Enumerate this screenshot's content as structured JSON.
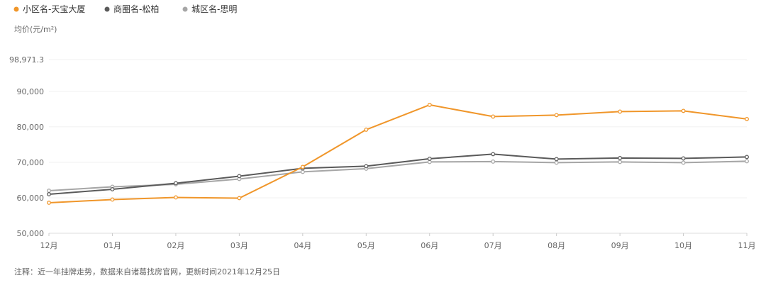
{
  "chart_data": {
    "type": "line",
    "ylabel": "均价(元/m²)",
    "ymax_label": "98,971.3",
    "ylim": [
      50000,
      98971.3
    ],
    "yticks": [
      {
        "value": 50000,
        "label": "50,000"
      },
      {
        "value": 60000,
        "label": "60,000"
      },
      {
        "value": 70000,
        "label": "70,000"
      },
      {
        "value": 80000,
        "label": "80,000"
      },
      {
        "value": 90000,
        "label": "90,000"
      },
      {
        "value": 98971.3,
        "label": "98,971.3"
      }
    ],
    "categories": [
      "12月",
      "01月",
      "02月",
      "03月",
      "04月",
      "05月",
      "06月",
      "07月",
      "08月",
      "09月",
      "10月",
      "11月"
    ],
    "series": [
      {
        "name": "小区名-天宝大厦",
        "color": "#F0962A",
        "values": [
          58600,
          59500,
          60100,
          59900,
          68700,
          79200,
          86200,
          82900,
          83300,
          84300,
          84500,
          82200
        ]
      },
      {
        "name": "商圈名-松柏",
        "color": "#5A5A5A",
        "values": [
          61000,
          62400,
          64100,
          66100,
          68300,
          68900,
          71000,
          72300,
          70900,
          71200,
          71100,
          71500
        ]
      },
      {
        "name": "城区名-思明",
        "color": "#A6A6A6",
        "values": [
          62000,
          63100,
          63800,
          65300,
          67300,
          68200,
          70100,
          70200,
          69900,
          70100,
          69900,
          70300
        ]
      }
    ],
    "grid": true,
    "legend_position": "top-left"
  },
  "footnote": "注释：近一年挂牌走势，数据来自诸葛找房官网，更新时间2021年12月25日"
}
